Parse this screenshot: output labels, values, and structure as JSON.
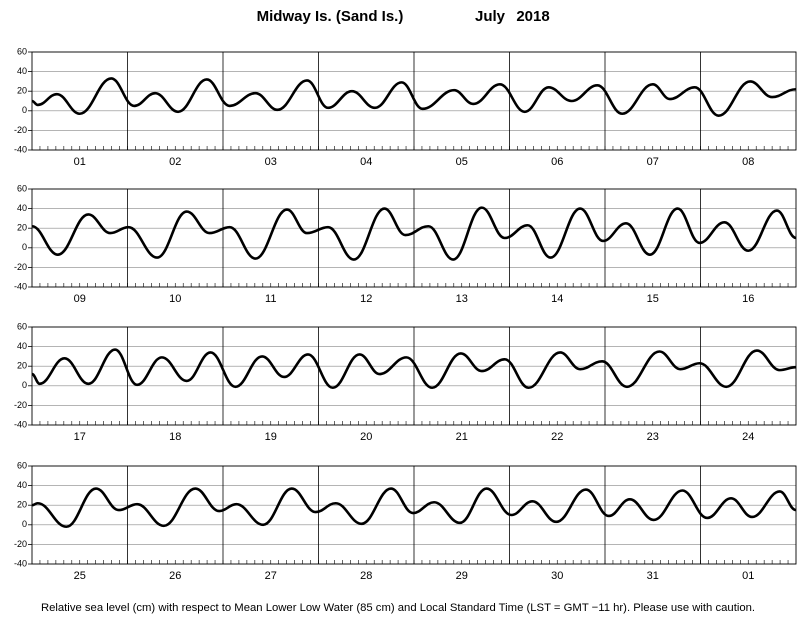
{
  "title": "Midway Is. (Sand Is.)",
  "month": "July",
  "year": "2018",
  "footnote": "Relative sea level (cm) with respect to Mean Lower Low Water (85 cm) and Local Standard Time (LST = GMT −11 hr). Please use with caution.",
  "chart_data": [
    {
      "type": "line",
      "color": "#000000",
      "grid": true,
      "categories": [
        "01",
        "02",
        "03",
        "04",
        "05",
        "06",
        "07",
        "08"
      ],
      "xlim": [
        0,
        8
      ],
      "ylim": [
        -40,
        60
      ],
      "yticks": [
        -40,
        -20,
        0,
        20,
        40,
        60
      ],
      "x": [
        0,
        0.06,
        0.26,
        0.5,
        0.83,
        1.07,
        1.29,
        1.53,
        1.83,
        2.07,
        2.34,
        2.57,
        2.88,
        3.1,
        3.35,
        3.59,
        3.87,
        4.09,
        4.42,
        4.62,
        4.9,
        5.16,
        5.41,
        5.65,
        5.92,
        6.18,
        6.5,
        6.68,
        6.94,
        7.19,
        7.52,
        7.75,
        8
      ],
      "values": [
        10,
        6,
        17,
        -3,
        33,
        5,
        18,
        -1,
        32,
        5,
        18,
        1,
        31,
        3,
        20,
        3,
        29,
        2,
        21,
        7,
        27,
        -1,
        24,
        10,
        26,
        -3,
        27,
        12,
        24,
        -5,
        30,
        14,
        22
      ]
    },
    {
      "type": "line",
      "color": "#000000",
      "grid": true,
      "categories": [
        "09",
        "10",
        "11",
        "12",
        "13",
        "14",
        "15",
        "16"
      ],
      "xlim": [
        0,
        8
      ],
      "ylim": [
        -40,
        60
      ],
      "yticks": [
        -40,
        -20,
        0,
        20,
        40,
        60
      ],
      "x": [
        0,
        0.27,
        0.59,
        0.82,
        1.01,
        1.31,
        1.62,
        1.86,
        2.07,
        2.34,
        2.67,
        2.88,
        3.1,
        3.37,
        3.69,
        3.91,
        4.15,
        4.41,
        4.71,
        4.95,
        5.19,
        5.43,
        5.74,
        5.98,
        6.22,
        6.47,
        6.76,
        6.99,
        7.25,
        7.5,
        7.8,
        8
      ],
      "values": [
        22,
        -7,
        34,
        15,
        21,
        -10,
        37,
        15,
        21,
        -11,
        39,
        15,
        21,
        -12,
        40,
        13,
        22,
        -12,
        41,
        10,
        23,
        -10,
        40,
        7,
        25,
        -7,
        40,
        5,
        26,
        -3,
        38,
        10
      ]
    },
    {
      "type": "line",
      "color": "#000000",
      "grid": true,
      "categories": [
        "17",
        "18",
        "19",
        "20",
        "21",
        "22",
        "23",
        "24"
      ],
      "xlim": [
        0,
        8
      ],
      "ylim": [
        -40,
        60
      ],
      "yticks": [
        -40,
        -20,
        0,
        20,
        40,
        60
      ],
      "x": [
        0,
        0.08,
        0.34,
        0.59,
        0.87,
        1.1,
        1.36,
        1.62,
        1.87,
        2.13,
        2.41,
        2.64,
        2.89,
        3.15,
        3.43,
        3.64,
        3.92,
        4.19,
        4.49,
        4.71,
        4.95,
        5.2,
        5.53,
        5.74,
        5.97,
        6.23,
        6.57,
        6.79,
        6.99,
        7.27,
        7.59,
        7.83,
        8
      ],
      "values": [
        12,
        2,
        28,
        2,
        37,
        1,
        29,
        5,
        34,
        -1,
        30,
        9,
        32,
        -2,
        32,
        12,
        29,
        -2,
        33,
        15,
        27,
        -2,
        34,
        17,
        25,
        -1,
        35,
        17,
        23,
        -1,
        36,
        16,
        19
      ]
    },
    {
      "type": "line",
      "color": "#000000",
      "grid": true,
      "categories": [
        "25",
        "26",
        "27",
        "28",
        "29",
        "30",
        "31",
        "01"
      ],
      "xlim": [
        0,
        8
      ],
      "ylim": [
        -40,
        60
      ],
      "yticks": [
        -40,
        -20,
        0,
        20,
        40,
        60
      ],
      "x": [
        0,
        0.06,
        0.36,
        0.67,
        0.91,
        1.1,
        1.38,
        1.71,
        1.96,
        2.14,
        2.42,
        2.72,
        2.97,
        3.18,
        3.45,
        3.76,
        3.99,
        4.21,
        4.48,
        4.76,
        5.02,
        5.24,
        5.49,
        5.8,
        6.04,
        6.26,
        6.51,
        6.81,
        7.07,
        7.32,
        7.54,
        7.83,
        8
      ],
      "values": [
        20,
        22,
        -2,
        37,
        15,
        21,
        -1,
        37,
        14,
        21,
        0,
        37,
        13,
        22,
        1,
        37,
        12,
        23,
        2,
        37,
        10,
        24,
        3,
        36,
        9,
        26,
        5,
        35,
        7,
        27,
        8,
        34,
        15
      ]
    }
  ]
}
